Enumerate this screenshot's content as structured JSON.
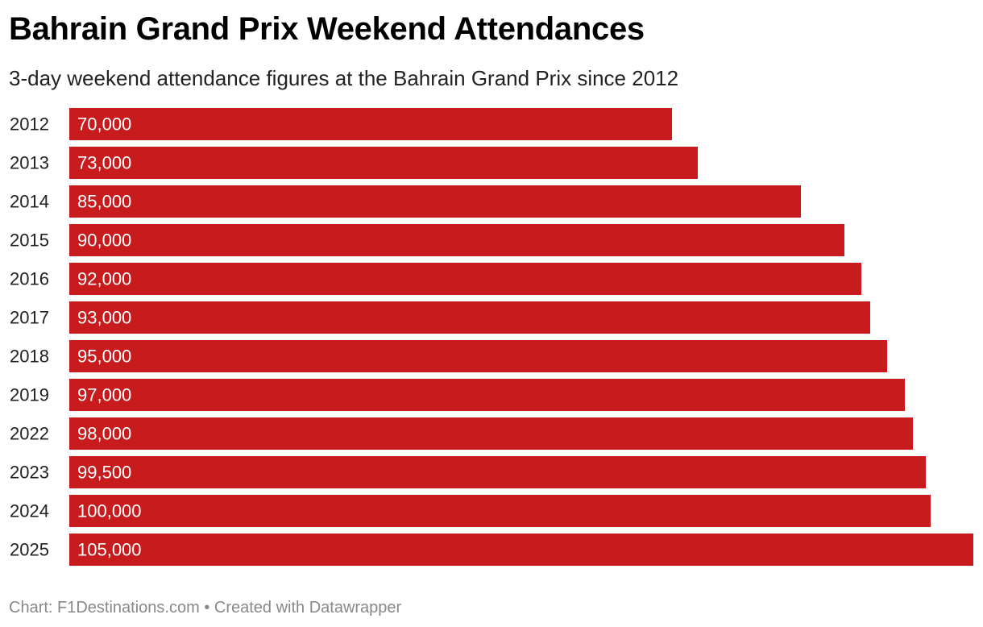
{
  "header": {
    "title": "Bahrain Grand Prix Weekend Attendances",
    "subtitle": "3-day weekend attendance figures at the Bahrain Grand Prix since 2012"
  },
  "footer": {
    "text": "Chart: F1Destinations.com • Created with Datawrapper"
  },
  "colors": {
    "bar": "#c71b1e",
    "label_text": "#ffffff",
    "category_text": "#222222"
  },
  "chart_data": {
    "type": "bar",
    "orientation": "horizontal",
    "title": "Bahrain Grand Prix Weekend Attendances",
    "subtitle": "3-day weekend attendance figures at the Bahrain Grand Prix since 2012",
    "xlabel": "",
    "ylabel": "",
    "xlim": [
      0,
      105000
    ],
    "grid": false,
    "categories": [
      "2012",
      "2013",
      "2014",
      "2015",
      "2016",
      "2017",
      "2018",
      "2019",
      "2022",
      "2023",
      "2024",
      "2025"
    ],
    "values": [
      70000,
      73000,
      85000,
      90000,
      92000,
      93000,
      95000,
      97000,
      98000,
      99500,
      100000,
      105000
    ],
    "data_labels": [
      "70,000",
      "73,000",
      "85,000",
      "90,000",
      "92,000",
      "93,000",
      "95,000",
      "97,000",
      "98,000",
      "99,500",
      "100,000",
      "105,000"
    ]
  }
}
